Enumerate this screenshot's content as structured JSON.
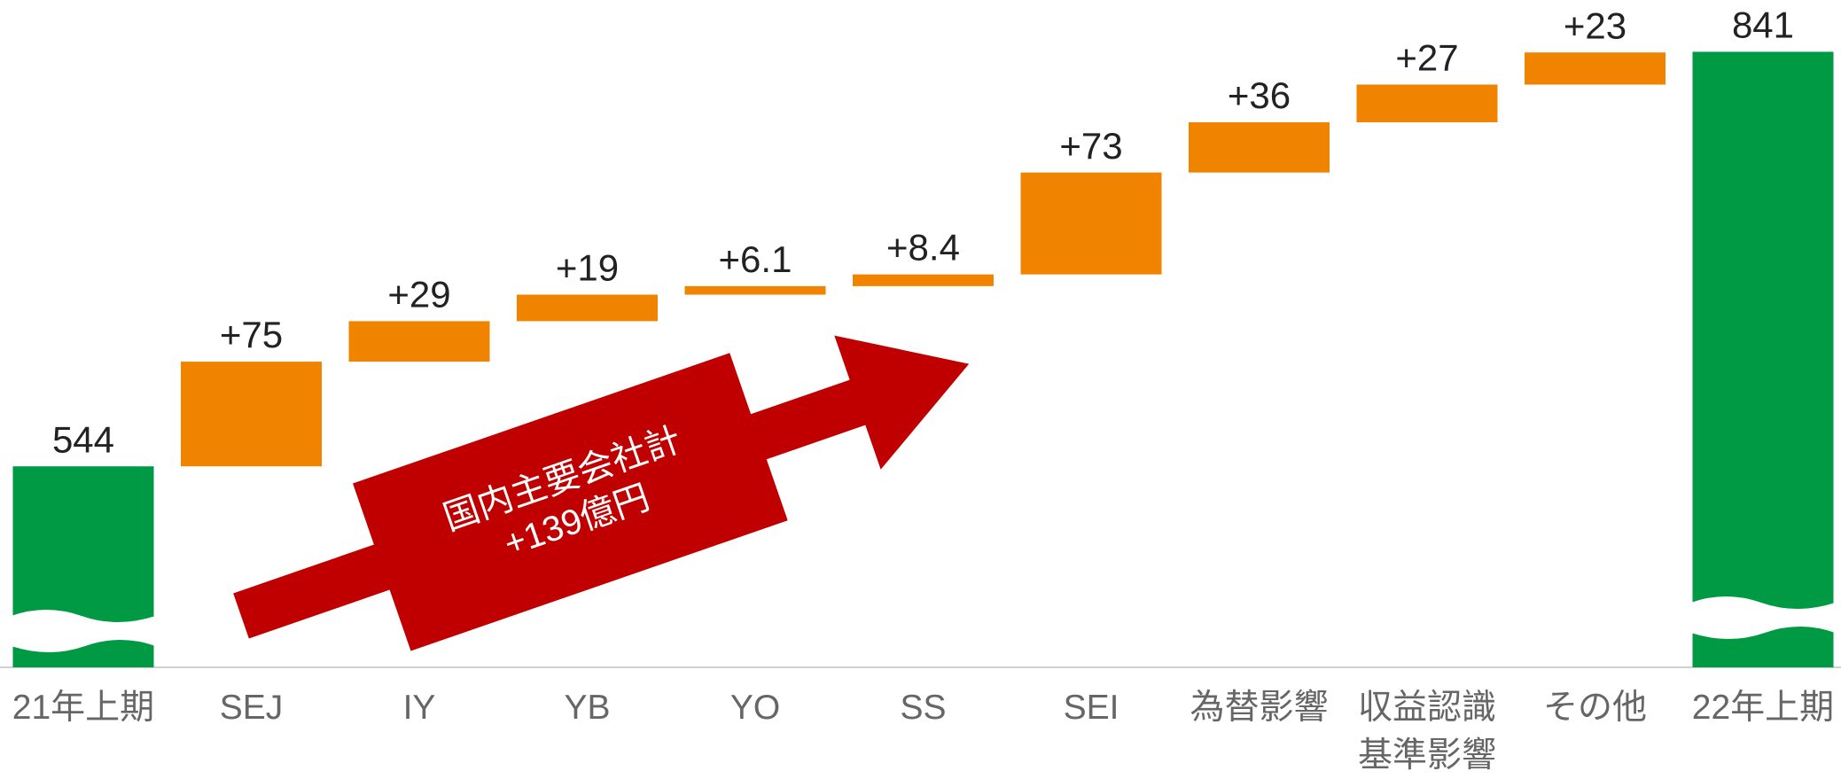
{
  "chart_data": {
    "type": "waterfall",
    "categories": [
      "21年上期",
      "SEJ",
      "IY",
      "YB",
      "YO",
      "SS",
      "SEI",
      "為替影響",
      "収益認識\n基準影響",
      "その他",
      "22年上期"
    ],
    "values": [
      544,
      75,
      29,
      19,
      6.1,
      8.4,
      73,
      36,
      27,
      23,
      841
    ],
    "value_labels": [
      "544",
      "+75",
      "+29",
      "+19",
      "+6.1",
      "+8.4",
      "+73",
      "+36",
      "+27",
      "+23",
      "841"
    ],
    "total_color": "#009a44",
    "increase_color": "#f08300",
    "ylim": [
      400,
      880
    ],
    "annotation": [
      "国内主要会社計",
      "+139億円"
    ]
  }
}
